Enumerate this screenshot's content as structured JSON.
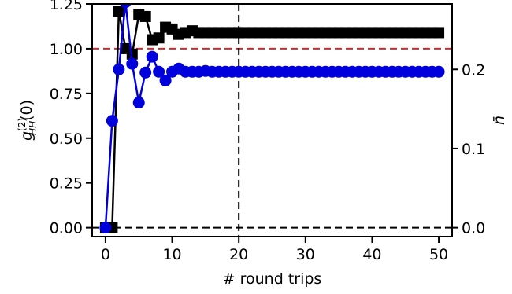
{
  "chart_data": {
    "type": "line",
    "xlabel": "# round trips",
    "ylabel_left": "g_HH^(2)(0)",
    "ylabel_left_parts": {
      "base": "g",
      "sup": "(2)",
      "sub": "HH",
      "arg": "(0)"
    },
    "ylabel_right": "n̄",
    "xlim": [
      -2,
      52
    ],
    "ylim_left": [
      -0.05,
      1.25
    ],
    "ylim_right": [
      -0.0113,
      0.2827
    ],
    "x_ticks": [
      0,
      10,
      20,
      30,
      40,
      50
    ],
    "x_tick_labels": [
      "0",
      "10",
      "20",
      "30",
      "40",
      "50"
    ],
    "y_left_ticks": [
      0.0,
      0.25,
      0.5,
      0.75,
      1.0,
      1.25
    ],
    "y_left_tick_labels": [
      "0.00",
      "0.25",
      "0.50",
      "0.75",
      "1.00",
      "1.25"
    ],
    "y_right_ticks": [
      0.0,
      0.1,
      0.2
    ],
    "y_right_tick_labels": [
      "0.0",
      "0.1",
      "0.2"
    ],
    "reference_lines": [
      {
        "orientation": "horizontal",
        "axis": "left",
        "value": 1.0,
        "color": "#d62728",
        "style": "dashed"
      },
      {
        "orientation": "horizontal",
        "axis": "left",
        "value": 0.0,
        "color": "#000000",
        "style": "dashed"
      },
      {
        "orientation": "vertical",
        "value": 20,
        "color": "#000000",
        "style": "dashed"
      }
    ],
    "series": [
      {
        "axis": "left",
        "marker": "square",
        "color": "#000000",
        "x": [
          0,
          1,
          2,
          3,
          4,
          5,
          6,
          7,
          8,
          9,
          10,
          11,
          12,
          13,
          14,
          15,
          16,
          17,
          18,
          19,
          20,
          21,
          22,
          23,
          24,
          25,
          26,
          27,
          28,
          29,
          30,
          31,
          32,
          33,
          34,
          35,
          36,
          37,
          38,
          39,
          40,
          41,
          42,
          43,
          44,
          45,
          46,
          47,
          48,
          49,
          50
        ],
        "values": [
          0.0,
          0.0,
          1.21,
          1.0,
          0.97,
          1.19,
          1.18,
          1.05,
          1.06,
          1.12,
          1.11,
          1.08,
          1.09,
          1.1,
          1.09,
          1.09,
          1.09,
          1.09,
          1.09,
          1.09,
          1.09,
          1.09,
          1.09,
          1.09,
          1.09,
          1.09,
          1.09,
          1.09,
          1.09,
          1.09,
          1.09,
          1.09,
          1.09,
          1.09,
          1.09,
          1.09,
          1.09,
          1.09,
          1.09,
          1.09,
          1.09,
          1.09,
          1.09,
          1.09,
          1.09,
          1.09,
          1.09,
          1.09,
          1.09,
          1.09,
          1.09
        ]
      },
      {
        "axis": "right",
        "marker": "circle",
        "color": "#0000dd",
        "x": [
          0,
          1,
          2,
          3,
          4,
          5,
          6,
          7,
          8,
          9,
          10,
          11,
          12,
          13,
          14,
          15,
          16,
          17,
          18,
          19,
          20,
          21,
          22,
          23,
          24,
          25,
          26,
          27,
          28,
          29,
          30,
          31,
          32,
          33,
          34,
          35,
          36,
          37,
          38,
          39,
          40,
          41,
          42,
          43,
          44,
          45,
          46,
          47,
          48,
          49,
          50
        ],
        "values": [
          0.0,
          0.135,
          0.2,
          0.285,
          0.207,
          0.158,
          0.196,
          0.216,
          0.197,
          0.186,
          0.197,
          0.201,
          0.197,
          0.197,
          0.197,
          0.198,
          0.197,
          0.197,
          0.197,
          0.197,
          0.197,
          0.197,
          0.197,
          0.197,
          0.197,
          0.197,
          0.197,
          0.197,
          0.197,
          0.197,
          0.197,
          0.197,
          0.197,
          0.197,
          0.197,
          0.197,
          0.197,
          0.197,
          0.197,
          0.197,
          0.197,
          0.197,
          0.197,
          0.197,
          0.197,
          0.197,
          0.197,
          0.197,
          0.197,
          0.197,
          0.197
        ]
      }
    ]
  }
}
